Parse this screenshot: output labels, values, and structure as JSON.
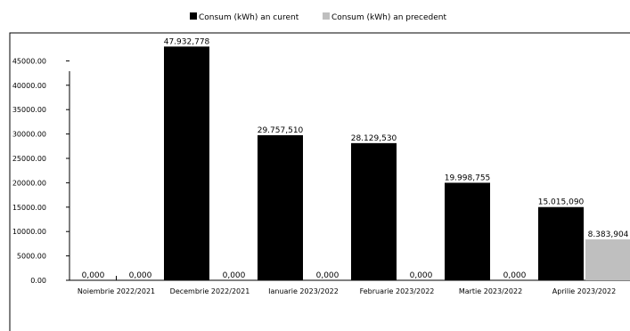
{
  "chart_data": {
    "type": "bar",
    "title": "",
    "xlabel": "",
    "ylabel": "",
    "ylim": [
      0,
      50000
    ],
    "yticks": [
      "0.00",
      "5000.00",
      "10000.00",
      "15000.00",
      "20000.00",
      "25000.00",
      "30000.00",
      "35000.00",
      "40000.00",
      "45000.00"
    ],
    "categories": [
      "Noiembrie 2022/2021",
      "Decembrie 2022/2021",
      "Ianuarie 2023/2022",
      "Februarie 2023/2022",
      "Martie 2023/2022",
      "Aprilie 2023/2022"
    ],
    "series": [
      {
        "name": "Consum (kWh) an curent",
        "color": "#000000",
        "values": [
          0,
          47932.778,
          29757.51,
          28129.53,
          19998.755,
          15015.09
        ],
        "labels": [
          "0,000",
          "47.932,778",
          "29.757,510",
          "28.129,530",
          "19.998,755",
          "15.015,090"
        ]
      },
      {
        "name": "Consum (kWh) an precedent",
        "color": "#bfbfbf",
        "values": [
          0,
          0,
          0,
          0,
          0,
          8383.904
        ],
        "labels": [
          "0,000",
          "0,000",
          "0,000",
          "0,000",
          "0,000",
          "8.383,904"
        ]
      }
    ],
    "legend_position": "top-center",
    "grid": false
  }
}
